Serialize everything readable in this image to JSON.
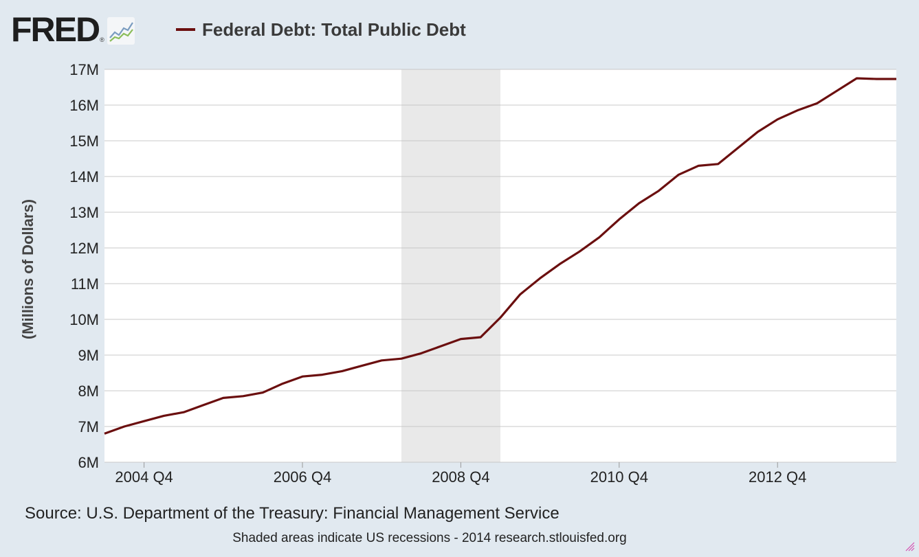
{
  "header": {
    "logo_text": "FRED",
    "logo_reg": "®",
    "logo_icon": "line-chart-icon"
  },
  "legend": {
    "label": "Federal Debt: Total Public Debt",
    "color": "#6b0f0f"
  },
  "footer": {
    "source": "Source: U.S. Department of the Treasury: Financial Management Service",
    "note": "Shaded areas indicate US recessions - 2014 research.stlouisfed.org"
  },
  "colors": {
    "background": "#e1e9f0",
    "plot_bg": "#ffffff",
    "grid": "#c8c8c8",
    "recession": "#e9e9e9",
    "series": "#6b0f0f"
  },
  "chart_data": {
    "type": "line",
    "ylabel": "(Millions of Dollars)",
    "ylim": [
      6,
      17
    ],
    "y_unit": "M",
    "yticks": [
      "6M",
      "7M",
      "8M",
      "9M",
      "10M",
      "11M",
      "12M",
      "13M",
      "14M",
      "15M",
      "16M",
      "17M"
    ],
    "xticks": [
      "2004 Q4",
      "2006 Q4",
      "2008 Q4",
      "2010 Q4",
      "2012 Q4"
    ],
    "grid": true,
    "recessions": [
      {
        "start": "2008 Q1",
        "end": "2009 Q2"
      }
    ],
    "series": [
      {
        "x": [
          "2004 Q2",
          "2004 Q3",
          "2004 Q4",
          "2005 Q1",
          "2005 Q2",
          "2005 Q3",
          "2005 Q4",
          "2006 Q1",
          "2006 Q2",
          "2006 Q3",
          "2006 Q4",
          "2007 Q1",
          "2007 Q2",
          "2007 Q3",
          "2007 Q4",
          "2008 Q1",
          "2008 Q2",
          "2008 Q3",
          "2008 Q4",
          "2009 Q1",
          "2009 Q2",
          "2009 Q3",
          "2009 Q4",
          "2010 Q1",
          "2010 Q2",
          "2010 Q3",
          "2010 Q4",
          "2011 Q1",
          "2011 Q2",
          "2011 Q3",
          "2011 Q4",
          "2012 Q1",
          "2012 Q2",
          "2012 Q3",
          "2012 Q4",
          "2013 Q1",
          "2013 Q2",
          "2013 Q3",
          "2013 Q4",
          "2014 Q1",
          "2014 Q2"
        ],
        "values": [
          6.8,
          7.0,
          7.15,
          7.3,
          7.4,
          7.6,
          7.8,
          7.85,
          7.95,
          8.2,
          8.4,
          8.45,
          8.55,
          8.7,
          8.85,
          8.9,
          9.05,
          9.25,
          9.45,
          9.5,
          10.05,
          10.7,
          11.15,
          11.55,
          11.9,
          12.3,
          12.8,
          13.25,
          13.6,
          14.05,
          14.3,
          14.35,
          14.8,
          15.25,
          15.6,
          15.85,
          16.05,
          16.4,
          16.75,
          16.73,
          16.73
        ]
      }
    ]
  }
}
